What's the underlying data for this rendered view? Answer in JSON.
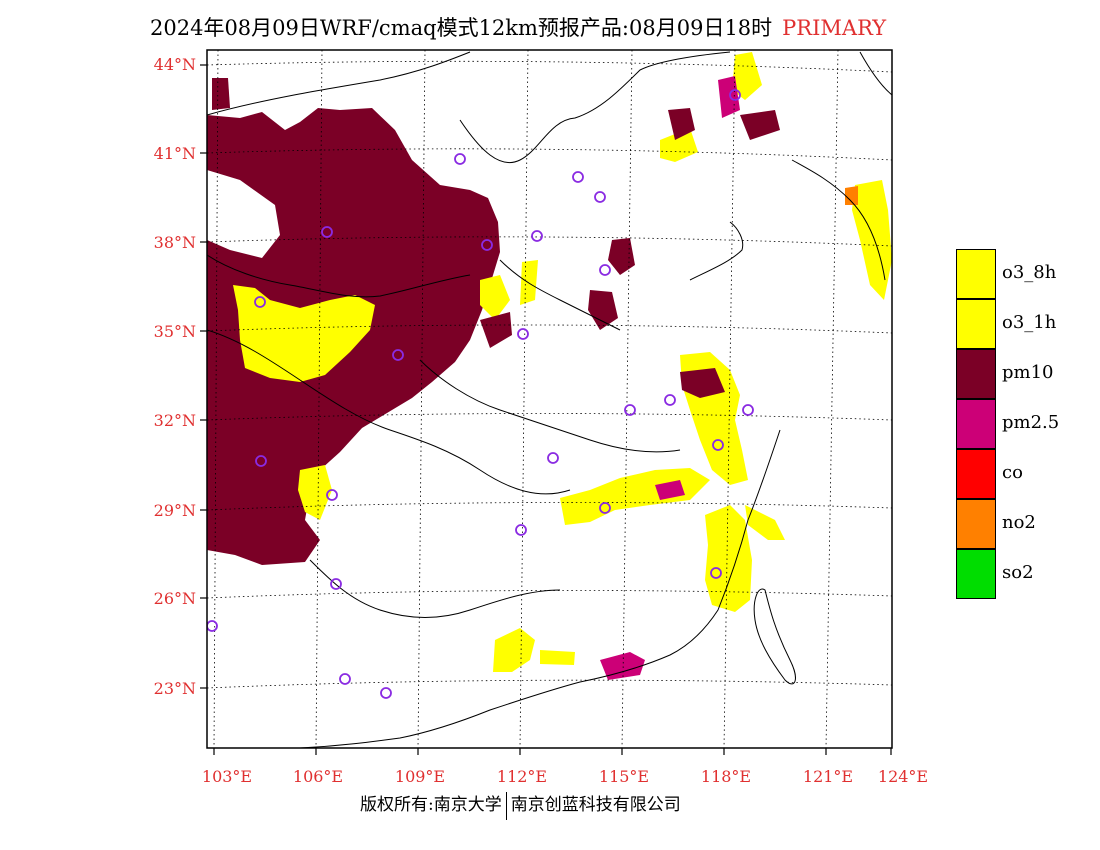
{
  "title": {
    "main": "2024年08月09日WRF/cmaq模式12km预报产品:08月09日18时",
    "tag": "PRIMARY",
    "tag_color": "#e03030"
  },
  "axes": {
    "lat_labels": [
      "44°N",
      "41°N",
      "38°N",
      "35°N",
      "32°N",
      "29°N",
      "26°N",
      "23°N"
    ],
    "lon_labels": [
      "103°E",
      "106°E",
      "109°E",
      "112°E",
      "115°E",
      "118°E",
      "121°E",
      "124°E"
    ],
    "label_color": "#e03030"
  },
  "legend": {
    "items": [
      {
        "label": "o3_8h",
        "color": "#ffff00"
      },
      {
        "label": "o3_1h",
        "color": "#ffff00"
      },
      {
        "label": "pm10",
        "color": "#7b0026"
      },
      {
        "label": "pm2.5",
        "color": "#cc0077"
      },
      {
        "label": "co",
        "color": "#ff0000"
      },
      {
        "label": "no2",
        "color": "#ff8000"
      },
      {
        "label": "so2",
        "color": "#00dd00"
      }
    ]
  },
  "footer": {
    "left": "版权所有:南京大学",
    "right": "南京创蓝科技有限公司"
  }
}
